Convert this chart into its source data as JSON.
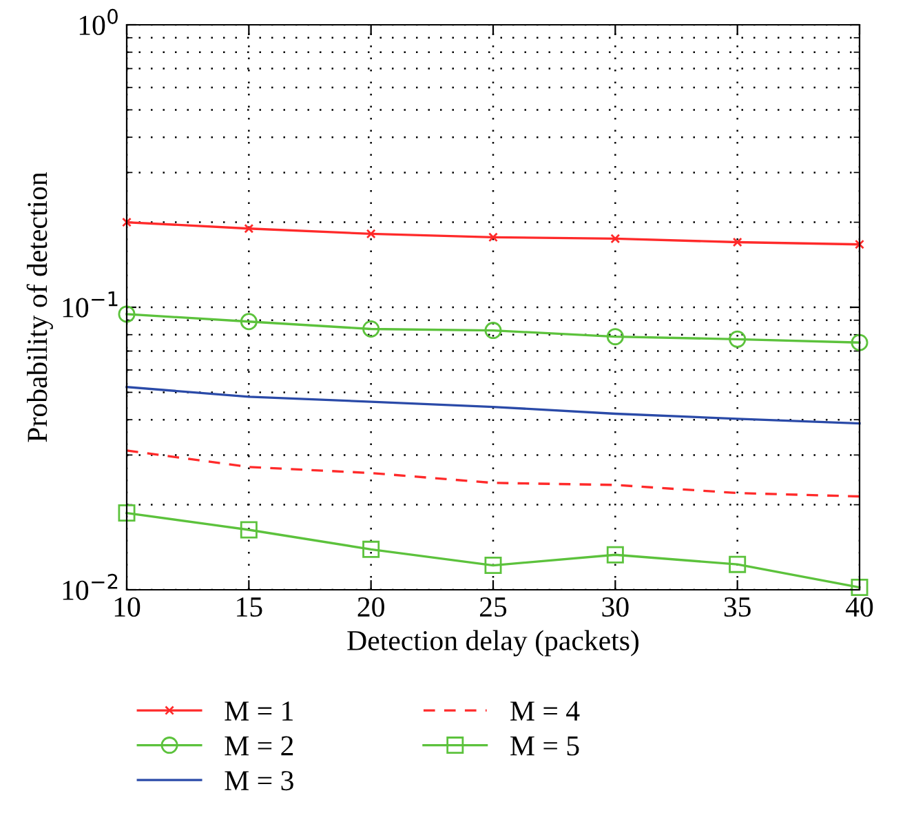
{
  "chart_data": {
    "type": "line",
    "xlabel": "Detection delay (packets)",
    "ylabel": "Probability of detection",
    "x": [
      10,
      15,
      20,
      25,
      30,
      35,
      40
    ],
    "log": true,
    "xlim": [
      10,
      40
    ],
    "xticks": [
      10,
      15,
      20,
      25,
      30,
      35,
      40
    ],
    "ylim": [
      0.01,
      1
    ],
    "yticks": [
      {
        "value": 1,
        "label": "10$^{0}$"
      },
      {
        "value": 0.1,
        "label": "10$^{−1}$"
      },
      {
        "value": 0.01,
        "label": "10$^{−2}$"
      }
    ],
    "grid": true,
    "legend": "bottom",
    "series": [
      {
        "name": "M = 1",
        "color": "#ff2a2a",
        "marker": "cross",
        "line_style": "solid",
        "values": [
          0.2,
          0.19,
          0.182,
          0.177,
          0.175,
          0.17,
          0.167
        ]
      },
      {
        "name": "M = 2",
        "color": "#5cc23c",
        "marker": "circle",
        "line_style": "solid",
        "values": [
          0.0946,
          0.089,
          0.0838,
          0.0828,
          0.0787,
          0.0771,
          0.075
        ]
      },
      {
        "name": "M = 3",
        "color": "#2a4aa8",
        "marker": "none",
        "line_style": "solid",
        "values": [
          0.0522,
          0.0482,
          0.0463,
          0.0444,
          0.042,
          0.0403,
          0.0388
        ]
      },
      {
        "name": "M = 4",
        "color": "#ff2a2a",
        "marker": "none",
        "line_style": "dashed",
        "values": [
          0.0311,
          0.0272,
          0.0259,
          0.0239,
          0.0235,
          0.022,
          0.0214
        ]
      },
      {
        "name": "M = 5",
        "color": "#5cc23c",
        "marker": "square",
        "line_style": "solid",
        "values": [
          0.0187,
          0.0163,
          0.0139,
          0.0122,
          0.0133,
          0.0123,
          0.0102
        ]
      }
    ]
  }
}
